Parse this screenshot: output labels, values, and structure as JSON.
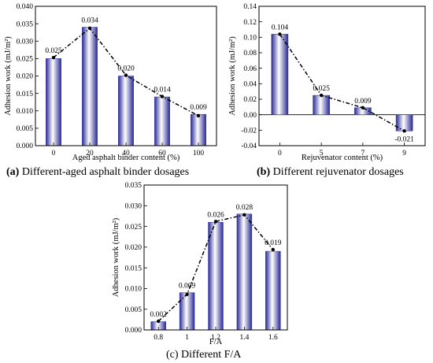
{
  "chart_data": [
    {
      "type": "bar",
      "panel": "a",
      "caption_letter": "(a)",
      "caption_text": " Different-aged asphalt binder dosages",
      "categories": [
        "0",
        "20",
        "40",
        "60",
        "100"
      ],
      "values": [
        0.025,
        0.034,
        0.02,
        0.014,
        0.009
      ],
      "data_labels": [
        "0.025",
        "0.034",
        "0.020",
        "0.014",
        "0.009"
      ],
      "line_values": [
        0.0253,
        0.0337,
        0.0202,
        0.0141,
        0.0086
      ],
      "xlabel": "Aged asphalt binder content (%)",
      "ylabel": "Adhesion work (mJ/m²)",
      "ylim": [
        0,
        0.04
      ],
      "yticks": [
        0.0,
        0.005,
        0.01,
        0.015,
        0.02,
        0.025,
        0.03,
        0.035,
        0.04
      ],
      "ytick_labels": [
        "0.000",
        "0.005",
        "0.010",
        "0.015",
        "0.020",
        "0.025",
        "0.030",
        "0.035",
        "0.040"
      ],
      "bar_color": "#2f2f9c",
      "line_style": "dash-dot"
    },
    {
      "type": "bar",
      "panel": "b",
      "caption_letter": "(b)",
      "caption_text": " Different rejuvenator dosages",
      "categories": [
        "0",
        "5",
        "7",
        "9"
      ],
      "values": [
        0.104,
        0.025,
        0.009,
        -0.021
      ],
      "data_labels": [
        "0.104",
        "0.025",
        "0.009",
        "-0.021"
      ],
      "line_values": [
        0.104,
        0.025,
        0.009,
        -0.021
      ],
      "xlabel": "Rejuvenator content (%)",
      "ylabel": "Adhesion work (mJ/m²)",
      "ylim": [
        -0.04,
        0.14
      ],
      "yticks": [
        -0.04,
        -0.02,
        0.0,
        0.02,
        0.04,
        0.06,
        0.08,
        0.1,
        0.12,
        0.14
      ],
      "ytick_labels": [
        "-0.04",
        "-0.02",
        "0.00",
        "0.02",
        "0.04",
        "0.06",
        "0.08",
        "0.10",
        "0.12",
        "0.14"
      ],
      "bar_color": "#2f2f9c",
      "line_style": "dash-dot"
    },
    {
      "type": "bar",
      "panel": "c",
      "caption_letter": "",
      "caption_text": "(c) Different F/A",
      "categories": [
        "0.8",
        "1",
        "1.2",
        "1.4",
        "1.6"
      ],
      "values": [
        0.002,
        0.009,
        0.026,
        0.028,
        0.019
      ],
      "data_labels": [
        "0.002",
        "0.009",
        "0.026",
        "0.028",
        "0.019"
      ],
      "line_values": [
        0.0021,
        0.0086,
        0.0262,
        0.0278,
        0.0194
      ],
      "xlabel": "F/A",
      "ylabel": "Adhesion work (mJ/m²)",
      "ylim": [
        0,
        0.035
      ],
      "yticks": [
        0.0,
        0.005,
        0.01,
        0.015,
        0.02,
        0.025,
        0.03,
        0.035
      ],
      "ytick_labels": [
        "0.000",
        "0.005",
        "0.010",
        "0.015",
        "0.020",
        "0.025",
        "0.030",
        "0.035"
      ],
      "bar_color": "#2f2f9c",
      "line_style": "dash-dot"
    }
  ]
}
